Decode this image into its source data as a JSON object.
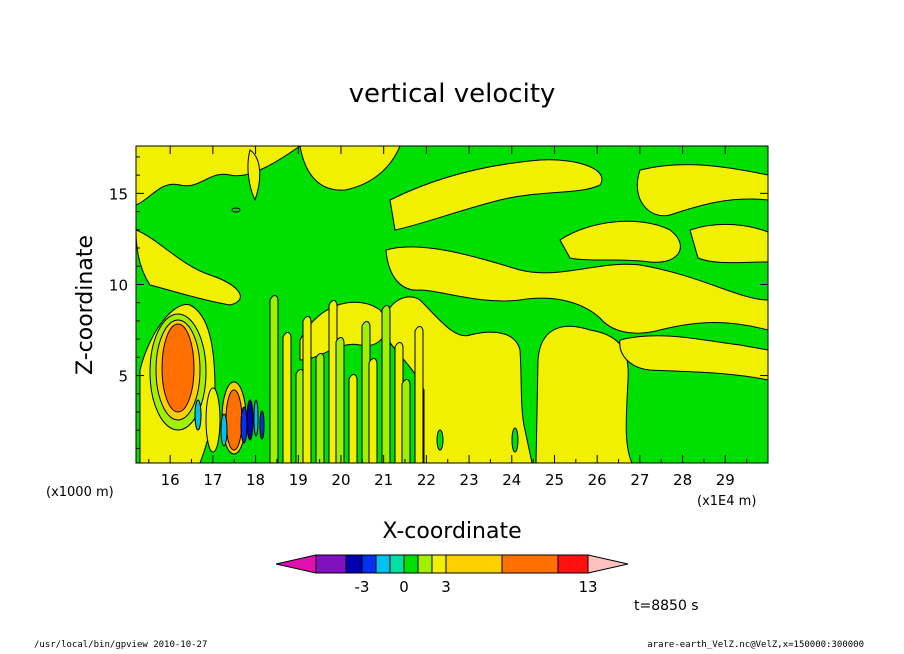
{
  "chart_data": {
    "type": "heatmap",
    "title": "vertical velocity",
    "xlabel": "X-coordinate",
    "ylabel": "Z-coordinate",
    "x_units_left": "(x1000 m)",
    "x_units_right": "(x1E4 m)",
    "x_ticks": [
      "16",
      "17",
      "18",
      "19",
      "20",
      "21",
      "22",
      "23",
      "24",
      "25",
      "26",
      "27",
      "28",
      "29"
    ],
    "y_ticks": [
      "5",
      "10",
      "15"
    ],
    "xlim": [
      15.2,
      30.0
    ],
    "ylim": [
      0.2,
      17.6
    ],
    "x_tick_values": [
      16,
      17,
      18,
      19,
      20,
      21,
      22,
      23,
      24,
      25,
      26,
      27,
      28,
      29
    ],
    "y_tick_values": [
      5,
      10,
      15
    ],
    "colorbar": {
      "labels": [
        "-3",
        "0",
        "3",
        "13"
      ],
      "colors": [
        "#e010b0",
        "#8010c0",
        "#0000b0",
        "#0030f0",
        "#00c0f0",
        "#00e0a0",
        "#00e000",
        "#a0f000",
        "#f0f000",
        "#ffd000",
        "#ff7000",
        "#ff1010",
        "#ff8080",
        "#ffc0c0"
      ]
    },
    "annotation": "t=8850 s",
    "structures": [
      {
        "kind": "updraft-core",
        "x": 15.9,
        "z": 5.5,
        "value": 13
      },
      {
        "kind": "updraft-core",
        "x": 17.3,
        "z": 2.5,
        "value": 10
      },
      {
        "kind": "downdraft-core",
        "x": 17.6,
        "z": 2.3,
        "value": -3
      },
      {
        "kind": "weak-updraft-region",
        "x_range": [
          22,
          24
        ],
        "z_range": [
          0.2,
          7
        ],
        "value": 0.5
      },
      {
        "kind": "weak-updraft-region",
        "x_range": [
          24.8,
          26.6
        ],
        "z_range": [
          0.2,
          6.5
        ],
        "value": 0.5
      }
    ]
  },
  "footer": {
    "left": "/usr/local/bin/gpview  2010-10-27",
    "right": "arare-earth_VelZ.nc@VelZ,x=150000:300000"
  }
}
